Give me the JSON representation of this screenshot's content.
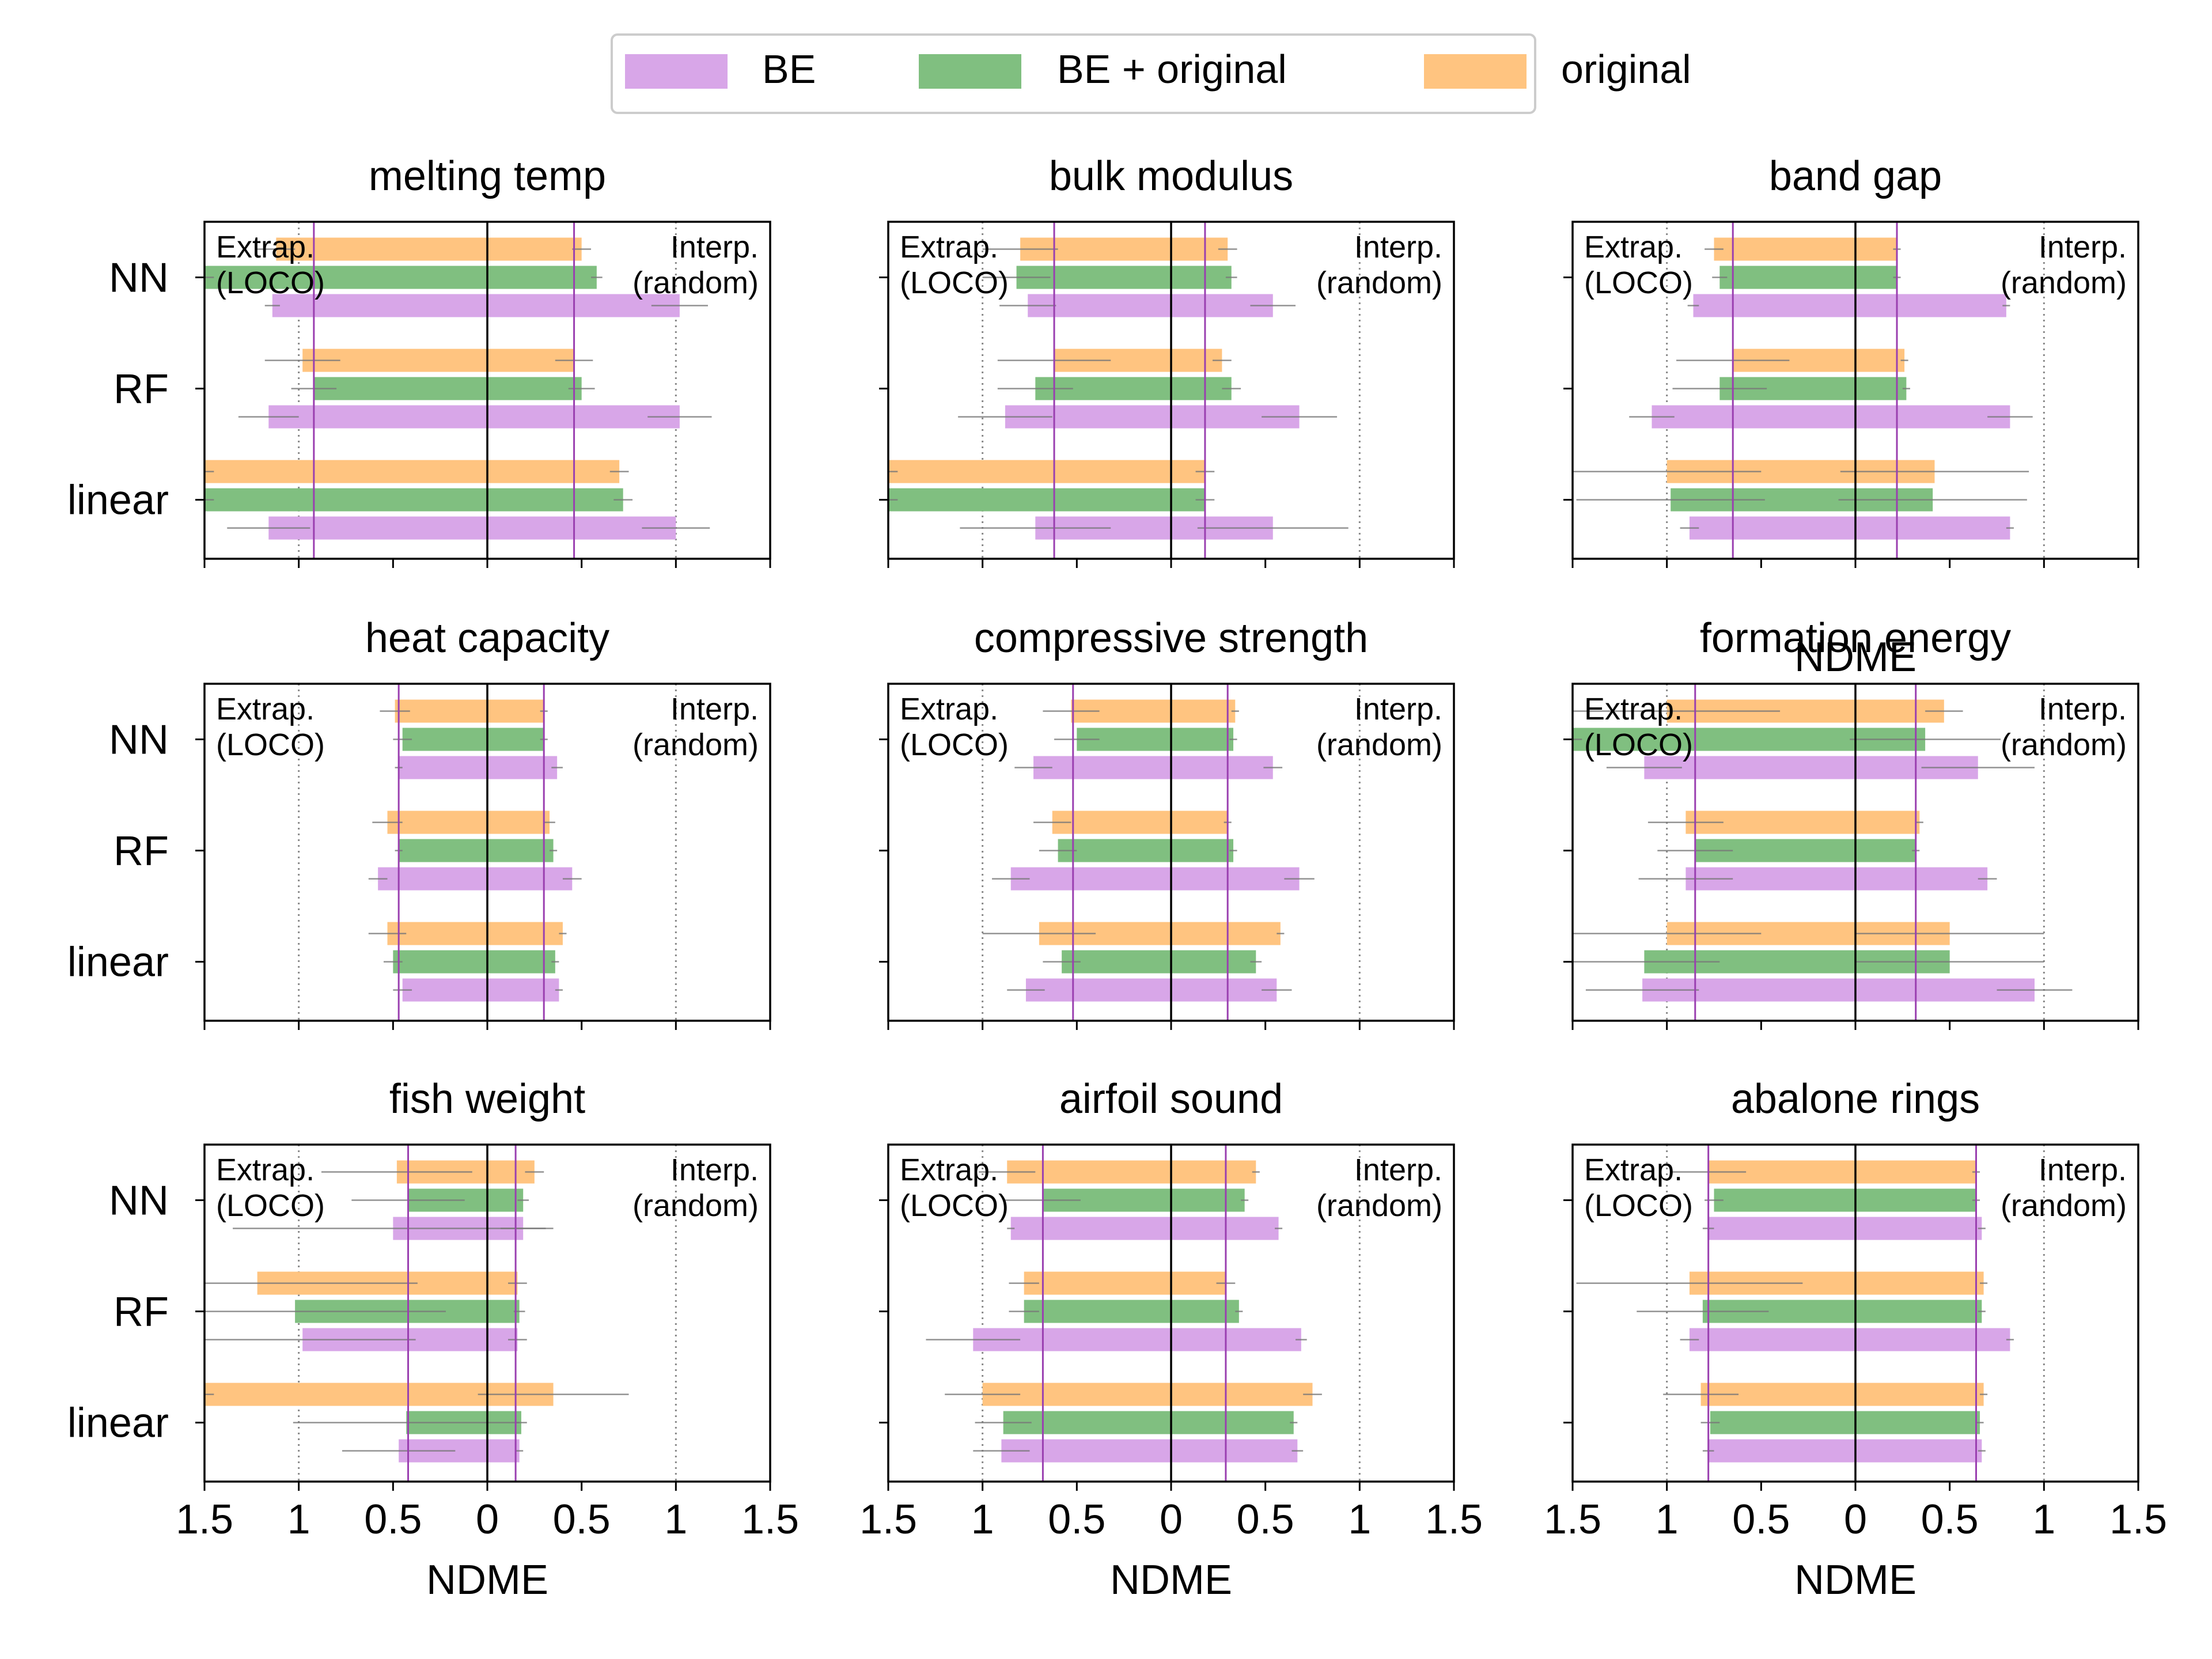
{
  "legend": {
    "placement": "top-center",
    "entries": [
      {
        "label": "BE",
        "color": "#d8a6e8",
        "key": "be"
      },
      {
        "label": "BE + original",
        "color": "#80bf80",
        "key": "beo"
      },
      {
        "label": "original",
        "color": "#ffc480",
        "key": "orig"
      }
    ]
  },
  "annotations": {
    "extrap_line1": "Extrap.",
    "extrap_line2": "(LOCO)",
    "interp_line1": "Interp.",
    "interp_line2": "(random)"
  },
  "chart_data": [
    {
      "type": "bar",
      "orientation": "horizontal",
      "title": "melting temp",
      "categories": [
        "NN",
        "RF",
        "linear"
      ],
      "xlim": [
        -1.5,
        1.5
      ],
      "xticks": [
        -1.5,
        -1,
        -0.5,
        0,
        0.5,
        1,
        1.5
      ],
      "xticklabels": [
        "1.5",
        "1",
        "0.5",
        "0",
        "0.5",
        "1",
        "1.5"
      ],
      "xlabel": "",
      "vlines": [
        -0.92,
        0.46
      ],
      "series": [
        {
          "name": "BE",
          "key": "be",
          "extrap": [
            -1.14,
            -1.16,
            -1.16
          ],
          "interp": [
            1.02,
            1.02,
            1.0
          ],
          "extrap_err": [
            0.04,
            0.16,
            0.22
          ],
          "interp_err": [
            0.15,
            0.17,
            0.18
          ]
        },
        {
          "name": "BE + original",
          "key": "beo",
          "extrap": [
            -1.5,
            -0.92,
            -1.5
          ],
          "interp": [
            0.58,
            0.5,
            0.72
          ],
          "extrap_err": [
            0.05,
            0.12,
            0.05
          ],
          "interp_err": [
            0.03,
            0.07,
            0.05
          ]
        },
        {
          "name": "original",
          "key": "orig",
          "extrap": [
            -1.12,
            -0.98,
            -1.5
          ],
          "interp": [
            0.5,
            0.46,
            0.7
          ],
          "extrap_err": [
            0.1,
            0.2,
            0.05
          ],
          "interp_err": [
            0.05,
            0.1,
            0.05
          ]
        }
      ]
    },
    {
      "type": "bar",
      "orientation": "horizontal",
      "title": "bulk modulus",
      "categories": [
        "NN",
        "RF",
        "linear"
      ],
      "xlim": [
        -1.5,
        1.5
      ],
      "xticks": [
        -1.5,
        -1,
        -0.5,
        0,
        0.5,
        1,
        1.5
      ],
      "xticklabels": [
        "1.5",
        "1",
        "0.5",
        "0",
        "0.5",
        "1",
        "1.5"
      ],
      "xlabel": "",
      "vlines": [
        -0.62,
        0.18
      ],
      "series": [
        {
          "name": "BE",
          "key": "be",
          "extrap": [
            -0.76,
            -0.88,
            -0.72
          ],
          "interp": [
            0.54,
            0.68,
            0.54
          ],
          "extrap_err": [
            0.15,
            0.25,
            0.4
          ],
          "interp_err": [
            0.12,
            0.2,
            0.4
          ]
        },
        {
          "name": "BE + original",
          "key": "beo",
          "extrap": [
            -0.82,
            -0.72,
            -1.5
          ],
          "interp": [
            0.32,
            0.32,
            0.18
          ],
          "extrap_err": [
            0.18,
            0.2,
            0.05
          ],
          "interp_err": [
            0.03,
            0.05,
            0.05
          ]
        },
        {
          "name": "original",
          "key": "orig",
          "extrap": [
            -0.8,
            -0.62,
            -1.5
          ],
          "interp": [
            0.3,
            0.27,
            0.18
          ],
          "extrap_err": [
            0.2,
            0.3,
            0.05
          ],
          "interp_err": [
            0.05,
            0.05,
            0.05
          ]
        }
      ]
    },
    {
      "type": "bar",
      "orientation": "horizontal",
      "title": "band gap",
      "categories": [
        "NN",
        "RF",
        "linear"
      ],
      "xlim": [
        -1.5,
        1.5
      ],
      "xticks": [
        -1.5,
        -1,
        -0.5,
        0,
        0.5,
        1,
        1.5
      ],
      "xticklabels": [
        "1.5",
        "1",
        "0.5",
        "0",
        "0.5",
        "1",
        "1.5"
      ],
      "xlabel": "NDME",
      "vlines": [
        -0.65,
        0.22
      ],
      "series": [
        {
          "name": "BE",
          "key": "be",
          "extrap": [
            -0.86,
            -1.08,
            -0.88
          ],
          "interp": [
            0.8,
            0.82,
            0.82
          ],
          "extrap_err": [
            0.03,
            0.12,
            0.05
          ],
          "interp_err": [
            0.02,
            0.12,
            0.02
          ]
        },
        {
          "name": "BE + original",
          "key": "beo",
          "extrap": [
            -0.72,
            -0.72,
            -0.98
          ],
          "interp": [
            0.22,
            0.27,
            0.41
          ],
          "extrap_err": [
            0.04,
            0.25,
            0.5
          ],
          "interp_err": [
            0.02,
            0.02,
            0.5
          ]
        },
        {
          "name": "original",
          "key": "orig",
          "extrap": [
            -0.75,
            -0.65,
            -1.0
          ],
          "interp": [
            0.22,
            0.26,
            0.42
          ],
          "extrap_err": [
            0.05,
            0.3,
            0.5
          ],
          "interp_err": [
            0.02,
            0.02,
            0.5
          ]
        }
      ]
    },
    {
      "type": "bar",
      "orientation": "horizontal",
      "title": "heat capacity",
      "categories": [
        "NN",
        "RF",
        "linear"
      ],
      "xlim": [
        -1.5,
        1.5
      ],
      "xticks": [
        -1.5,
        -1,
        -0.5,
        0,
        0.5,
        1,
        1.5
      ],
      "xticklabels": [
        "1.5",
        "1",
        "0.5",
        "0",
        "0.5",
        "1",
        "1.5"
      ],
      "xlabel": "",
      "vlines": [
        -0.47,
        0.3
      ],
      "series": [
        {
          "name": "BE",
          "key": "be",
          "extrap": [
            -0.47,
            -0.58,
            -0.45
          ],
          "interp": [
            0.37,
            0.45,
            0.38
          ],
          "extrap_err": [
            0.02,
            0.05,
            0.05
          ],
          "interp_err": [
            0.03,
            0.05,
            0.02
          ]
        },
        {
          "name": "BE + original",
          "key": "beo",
          "extrap": [
            -0.45,
            -0.47,
            -0.5
          ],
          "interp": [
            0.3,
            0.35,
            0.36
          ],
          "extrap_err": [
            0.05,
            0.02,
            0.05
          ],
          "interp_err": [
            0.02,
            0.02,
            0.02
          ]
        },
        {
          "name": "original",
          "key": "orig",
          "extrap": [
            -0.49,
            -0.53,
            -0.53
          ],
          "interp": [
            0.3,
            0.33,
            0.4
          ],
          "extrap_err": [
            0.08,
            0.08,
            0.1
          ],
          "interp_err": [
            0.02,
            0.03,
            0.02
          ]
        }
      ]
    },
    {
      "type": "bar",
      "orientation": "horizontal",
      "title": "compressive strength",
      "categories": [
        "NN",
        "RF",
        "linear"
      ],
      "xlim": [
        -1.5,
        1.5
      ],
      "xticks": [
        -1.5,
        -1,
        -0.5,
        0,
        0.5,
        1,
        1.5
      ],
      "xticklabels": [
        "1.5",
        "1",
        "0.5",
        "0",
        "0.5",
        "1",
        "1.5"
      ],
      "xlabel": "",
      "vlines": [
        -0.52,
        0.3
      ],
      "series": [
        {
          "name": "BE",
          "key": "be",
          "extrap": [
            -0.73,
            -0.85,
            -0.77
          ],
          "interp": [
            0.54,
            0.68,
            0.56
          ],
          "extrap_err": [
            0.1,
            0.1,
            0.1
          ],
          "interp_err": [
            0.05,
            0.08,
            0.08
          ]
        },
        {
          "name": "BE + original",
          "key": "beo",
          "extrap": [
            -0.5,
            -0.6,
            -0.58
          ],
          "interp": [
            0.33,
            0.33,
            0.45
          ],
          "extrap_err": [
            0.12,
            0.1,
            0.1
          ],
          "interp_err": [
            0.02,
            0.02,
            0.03
          ]
        },
        {
          "name": "original",
          "key": "orig",
          "extrap": [
            -0.53,
            -0.63,
            -0.7
          ],
          "interp": [
            0.34,
            0.3,
            0.58
          ],
          "extrap_err": [
            0.15,
            0.1,
            0.3
          ],
          "interp_err": [
            0.02,
            0.02,
            0.02
          ]
        }
      ]
    },
    {
      "type": "bar",
      "orientation": "horizontal",
      "title": "formation energy",
      "categories": [
        "NN",
        "RF",
        "linear"
      ],
      "xlim": [
        -1.5,
        1.5
      ],
      "xticks": [
        -1.5,
        -1,
        -0.5,
        0,
        0.5,
        1,
        1.5
      ],
      "xticklabels": [
        "1.5",
        "1",
        "0.5",
        "0",
        "0.5",
        "1",
        "1.5"
      ],
      "xlabel": "",
      "vlines": [
        -0.85,
        0.32
      ],
      "series": [
        {
          "name": "BE",
          "key": "be",
          "extrap": [
            -1.12,
            -0.9,
            -1.13
          ],
          "interp": [
            0.65,
            0.7,
            0.95
          ],
          "extrap_err": [
            0.2,
            0.25,
            0.3
          ],
          "interp_err": [
            0.3,
            0.05,
            0.2
          ]
        },
        {
          "name": "BE + original",
          "key": "beo",
          "extrap": [
            -1.5,
            -0.85,
            -1.12
          ],
          "interp": [
            0.37,
            0.32,
            0.5
          ],
          "extrap_err": [
            0.05,
            0.2,
            0.4
          ],
          "interp_err": [
            0.4,
            0.02,
            0.5
          ]
        },
        {
          "name": "original",
          "key": "orig",
          "extrap": [
            -1.0,
            -0.9,
            -1.0
          ],
          "interp": [
            0.47,
            0.34,
            0.5
          ],
          "extrap_err": [
            0.6,
            0.2,
            0.5
          ],
          "interp_err": [
            0.1,
            0.02,
            0.5
          ]
        }
      ]
    },
    {
      "type": "bar",
      "orientation": "horizontal",
      "title": "fish weight",
      "categories": [
        "NN",
        "RF",
        "linear"
      ],
      "xlim": [
        -1.5,
        1.5
      ],
      "xticks": [
        -1.5,
        -1,
        -0.5,
        0,
        0.5,
        1,
        1.5
      ],
      "xticklabels": [
        "1.5",
        "1",
        "0.5",
        "0",
        "0.5",
        "1",
        "1.5"
      ],
      "xlabel": "NDME",
      "vlines": [
        -0.42,
        0.15
      ],
      "series": [
        {
          "name": "BE",
          "key": "be",
          "extrap": [
            -0.5,
            -0.98,
            -0.47
          ],
          "interp": [
            0.19,
            0.16,
            0.17
          ],
          "extrap_err": [
            0.85,
            0.6,
            0.3
          ],
          "interp_err": [
            0.12,
            0.05,
            0.02
          ]
        },
        {
          "name": "BE + original",
          "key": "beo",
          "extrap": [
            -0.42,
            -1.02,
            -0.43
          ],
          "interp": [
            0.19,
            0.17,
            0.18
          ],
          "extrap_err": [
            0.3,
            0.8,
            0.6
          ],
          "interp_err": [
            0.03,
            0.03,
            0.03
          ]
        },
        {
          "name": "original",
          "key": "orig",
          "extrap": [
            -0.48,
            -1.22,
            -1.5
          ],
          "interp": [
            0.25,
            0.16,
            0.35
          ],
          "extrap_err": [
            0.4,
            0.85,
            0.05
          ],
          "interp_err": [
            0.05,
            0.05,
            0.4
          ]
        }
      ]
    },
    {
      "type": "bar",
      "orientation": "horizontal",
      "title": "airfoil sound",
      "categories": [
        "NN",
        "RF",
        "linear"
      ],
      "xlim": [
        -1.5,
        1.5
      ],
      "xticks": [
        -1.5,
        -1,
        -0.5,
        0,
        0.5,
        1,
        1.5
      ],
      "xticklabels": [
        "1.5",
        "1",
        "0.5",
        "0",
        "0.5",
        "1",
        "1.5"
      ],
      "xlabel": "NDME",
      "vlines": [
        -0.68,
        0.29
      ],
      "series": [
        {
          "name": "BE",
          "key": "be",
          "extrap": [
            -0.85,
            -1.05,
            -0.9
          ],
          "interp": [
            0.57,
            0.69,
            0.67
          ],
          "extrap_err": [
            0.02,
            0.25,
            0.15
          ],
          "interp_err": [
            0.02,
            0.03,
            0.03
          ]
        },
        {
          "name": "BE + original",
          "key": "beo",
          "extrap": [
            -0.68,
            -0.78,
            -0.89
          ],
          "interp": [
            0.39,
            0.36,
            0.65
          ],
          "extrap_err": [
            0.2,
            0.08,
            0.15
          ],
          "interp_err": [
            0.02,
            0.02,
            0.02
          ]
        },
        {
          "name": "original",
          "key": "orig",
          "extrap": [
            -0.87,
            -0.78,
            -1.0
          ],
          "interp": [
            0.45,
            0.29,
            0.75
          ],
          "extrap_err": [
            0.15,
            0.08,
            0.2
          ],
          "interp_err": [
            0.02,
            0.05,
            0.05
          ]
        }
      ]
    },
    {
      "type": "bar",
      "orientation": "horizontal",
      "title": "abalone rings",
      "categories": [
        "NN",
        "RF",
        "linear"
      ],
      "xlim": [
        -1.5,
        1.5
      ],
      "xticks": [
        -1.5,
        -1,
        -0.5,
        0,
        0.5,
        1,
        1.5
      ],
      "xticklabels": [
        "1.5",
        "1",
        "0.5",
        "0",
        "0.5",
        "1",
        "1.5"
      ],
      "xlabel": "NDME",
      "vlines": [
        -0.78,
        0.64
      ],
      "series": [
        {
          "name": "BE",
          "key": "be",
          "extrap": [
            -0.78,
            -0.88,
            -0.78
          ],
          "interp": [
            0.67,
            0.82,
            0.67
          ],
          "extrap_err": [
            0.03,
            0.05,
            0.03
          ],
          "interp_err": [
            0.02,
            0.02,
            0.02
          ]
        },
        {
          "name": "BE + original",
          "key": "beo",
          "extrap": [
            -0.75,
            -0.81,
            -0.77
          ],
          "interp": [
            0.64,
            0.67,
            0.66
          ],
          "extrap_err": [
            0.05,
            0.35,
            0.05
          ],
          "interp_err": [
            0.02,
            0.02,
            0.02
          ]
        },
        {
          "name": "original",
          "key": "orig",
          "extrap": [
            -0.78,
            -0.88,
            -0.82
          ],
          "interp": [
            0.64,
            0.68,
            0.68
          ],
          "extrap_err": [
            0.2,
            0.6,
            0.2
          ],
          "interp_err": [
            0.02,
            0.02,
            0.02
          ]
        }
      ]
    }
  ]
}
